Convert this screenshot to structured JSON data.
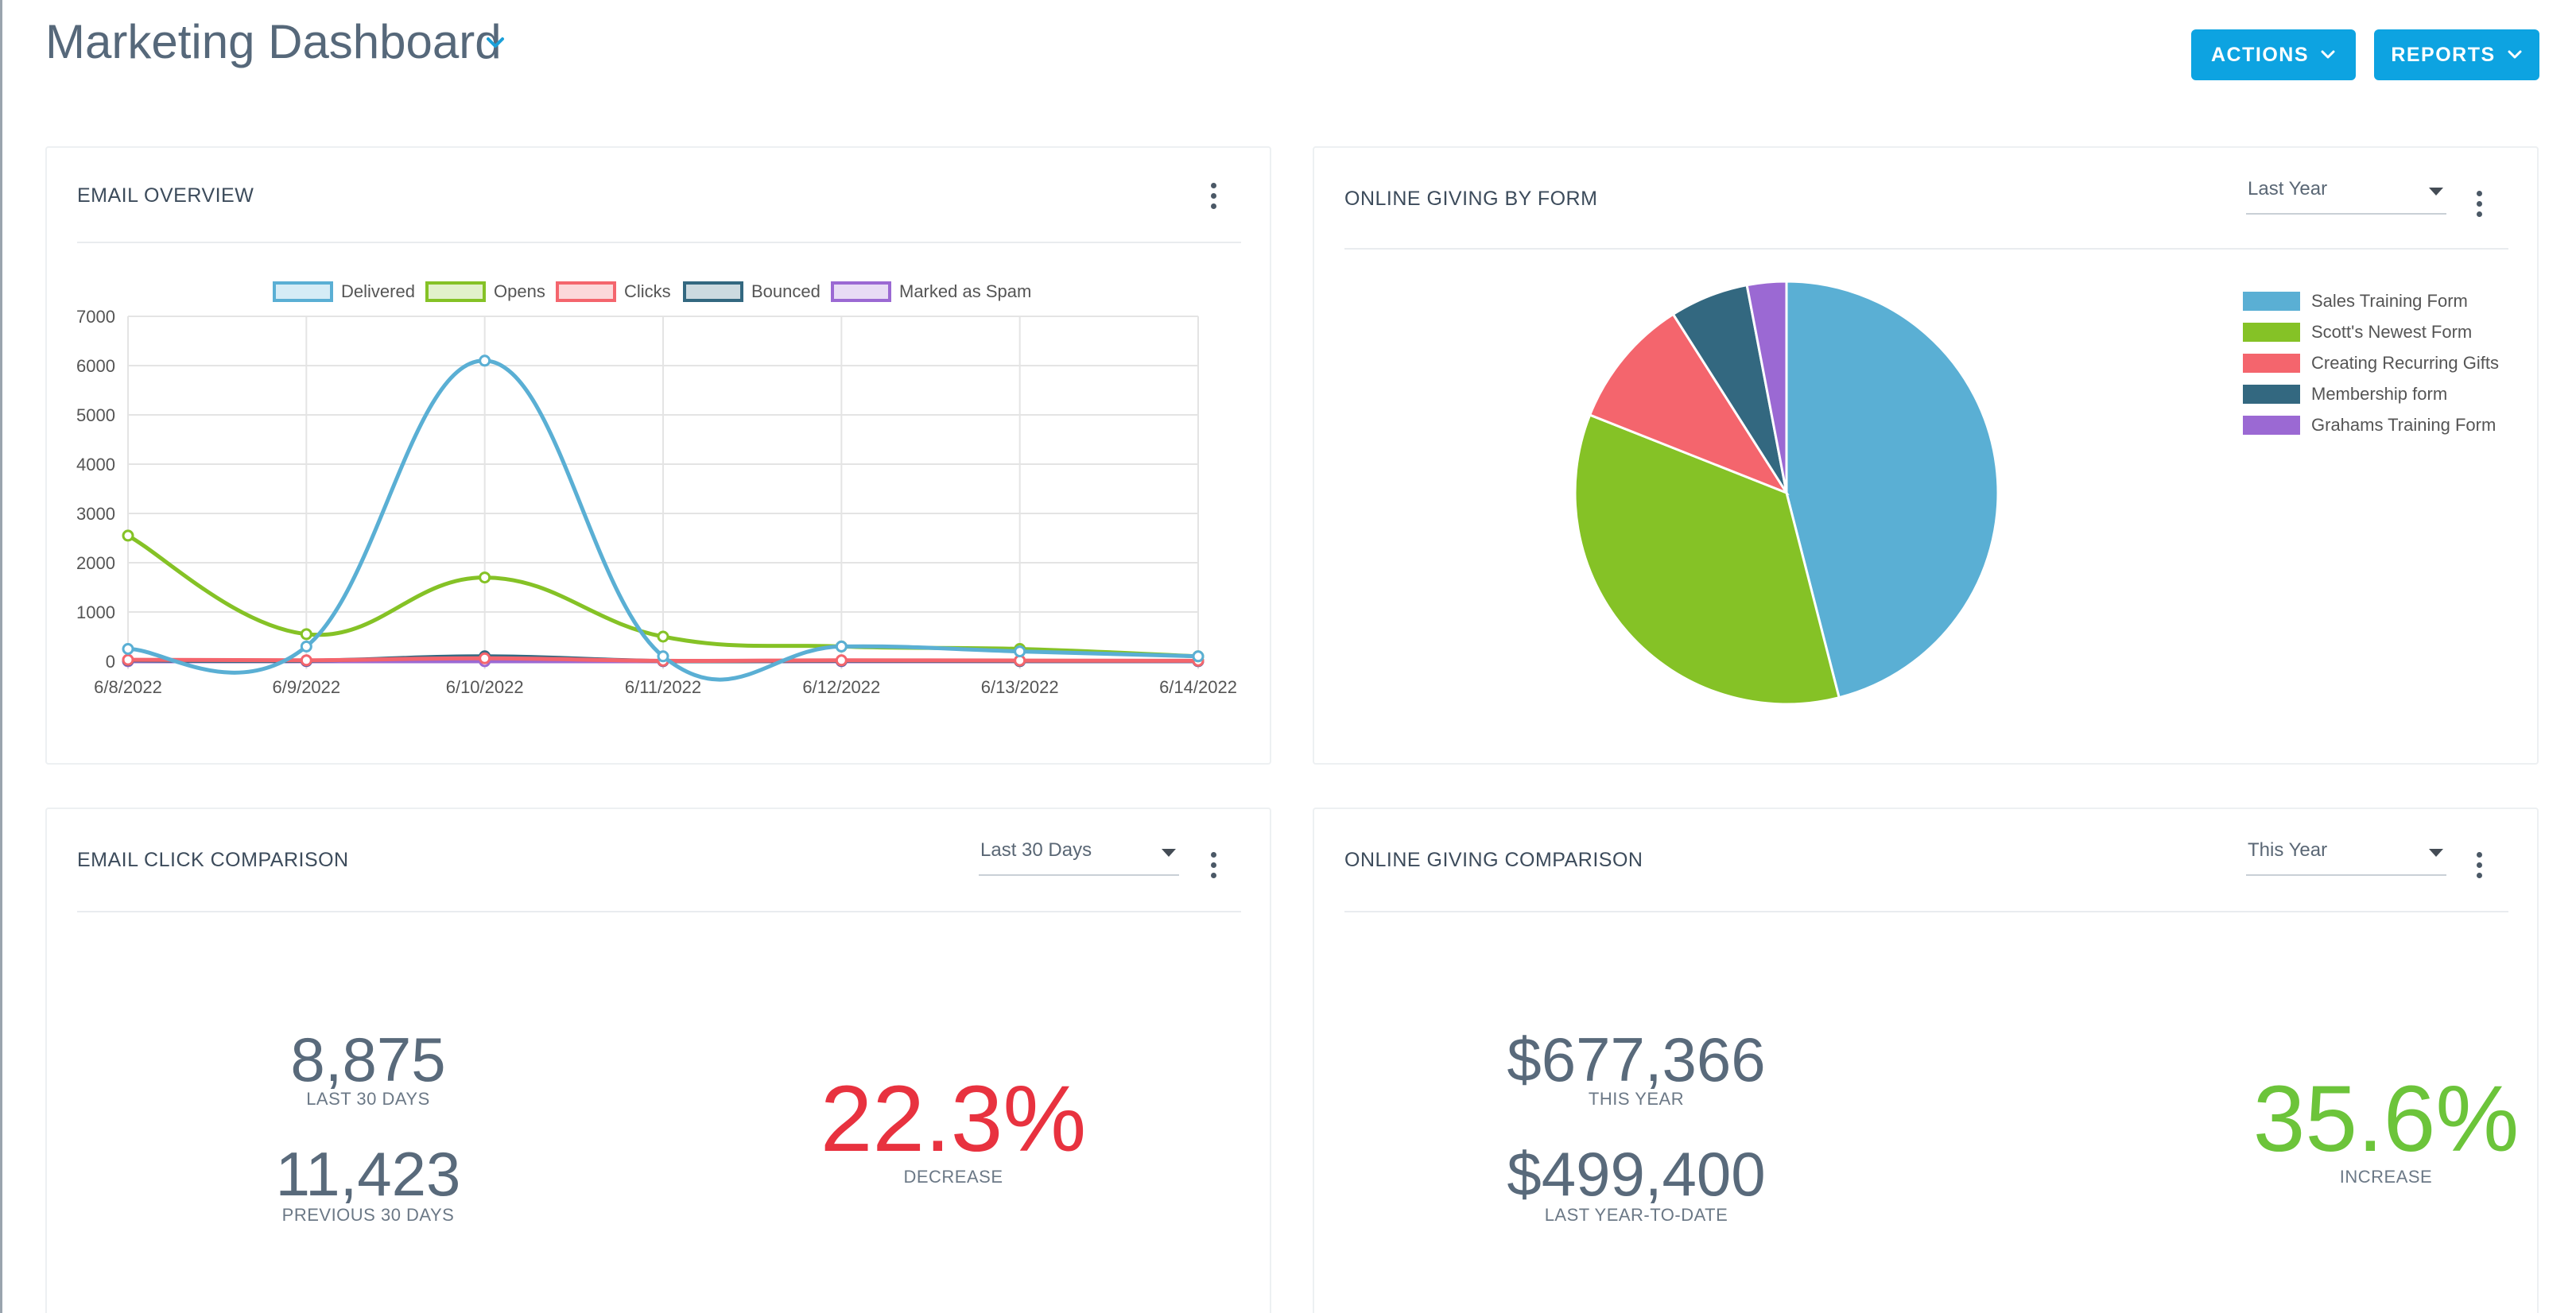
{
  "header": {
    "title": "Marketing Dashboard",
    "actions_label": "ACTIONS",
    "reports_label": "REPORTS"
  },
  "colors": {
    "accent": "#0da3e1",
    "delivered": "#5aafd4",
    "opens": "#85c226",
    "clicks": "#f4656d",
    "bounced": "#336880",
    "spam": "#9b69d3",
    "decrease": "#e8323f",
    "increase": "#6cc43a"
  },
  "email_overview": {
    "title": "EMAIL OVERVIEW",
    "legend": [
      "Delivered",
      "Opens",
      "Clicks",
      "Bounced",
      "Marked as Spam"
    ],
    "y_ticks": [
      "7000",
      "6000",
      "5000",
      "4000",
      "3000",
      "2000",
      "1000",
      "0"
    ]
  },
  "online_giving_by_form": {
    "title": "ONLINE GIVING BY FORM",
    "period": "Last Year",
    "legend": [
      "Sales Training Form",
      "Scott's Newest Form",
      "Creating Recurring Gifts",
      "Membership form",
      "Grahams Training Form"
    ]
  },
  "email_click_comparison": {
    "title": "EMAIL CLICK COMPARISON",
    "period": "Last 30 Days",
    "current_value": "8,875",
    "current_label": "LAST 30 DAYS",
    "previous_value": "11,423",
    "previous_label": "PREVIOUS 30 DAYS",
    "change_pct": "22.3%",
    "change_label": "DECREASE"
  },
  "online_giving_comparison": {
    "title": "ONLINE GIVING COMPARISON",
    "period": "This Year",
    "current_value": "$677,366",
    "current_label": "THIS YEAR",
    "previous_value": "$499,400",
    "previous_label": "LAST YEAR-TO-DATE",
    "change_pct": "35.6%",
    "change_label": "INCREASE"
  },
  "chart_data": [
    {
      "type": "line",
      "title": "EMAIL OVERVIEW",
      "categories": [
        "6/8/2022",
        "6/9/2022",
        "6/10/2022",
        "6/11/2022",
        "6/12/2022",
        "6/13/2022",
        "6/14/2022"
      ],
      "ylim": [
        0,
        7000
      ],
      "grid": true,
      "legend_position": "top",
      "series": [
        {
          "name": "Delivered",
          "values": [
            250,
            300,
            6100,
            100,
            300,
            200,
            100
          ]
        },
        {
          "name": "Opens",
          "values": [
            2550,
            550,
            1700,
            500,
            300,
            250,
            100
          ]
        },
        {
          "name": "Clicks",
          "values": [
            30,
            20,
            60,
            10,
            20,
            15,
            10
          ]
        },
        {
          "name": "Bounced",
          "values": [
            20,
            10,
            100,
            5,
            10,
            5,
            5
          ]
        },
        {
          "name": "Marked as Spam",
          "values": [
            0,
            0,
            0,
            0,
            0,
            0,
            0
          ]
        }
      ]
    },
    {
      "type": "pie",
      "title": "ONLINE GIVING BY FORM",
      "legend_position": "right",
      "labels": [
        "Sales Training Form",
        "Scott's Newest Form",
        "Creating Recurring Gifts",
        "Membership form",
        "Grahams Training Form"
      ],
      "values": [
        46,
        35,
        10,
        6,
        3
      ]
    }
  ]
}
